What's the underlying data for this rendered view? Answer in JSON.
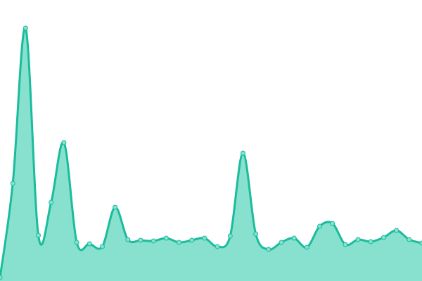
{
  "chart_data": {
    "type": "area",
    "title": "",
    "xlabel": "",
    "ylabel": "",
    "x": [
      0,
      1,
      2,
      3,
      4,
      5,
      6,
      7,
      8,
      9,
      10,
      11,
      12,
      13,
      14,
      15,
      16,
      17,
      18,
      19,
      20,
      21,
      22,
      23,
      24,
      25,
      26,
      27,
      28,
      29,
      30,
      31,
      32,
      33
    ],
    "values": [
      5,
      139,
      360,
      65,
      112,
      197,
      55,
      53,
      49,
      105,
      59,
      58,
      57,
      61,
      55,
      58,
      61,
      49,
      64,
      182,
      67,
      45,
      55,
      61,
      48,
      78,
      82,
      52,
      59,
      56,
      62,
      72,
      59,
      54
    ],
    "ylim": [
      0,
      400
    ],
    "grid": false,
    "axes_visible": false,
    "markers": true,
    "smooth": true,
    "colors": {
      "line": "#1abc9c",
      "fill": "#88e0cf",
      "marker_fill": "#88e0cf"
    }
  }
}
